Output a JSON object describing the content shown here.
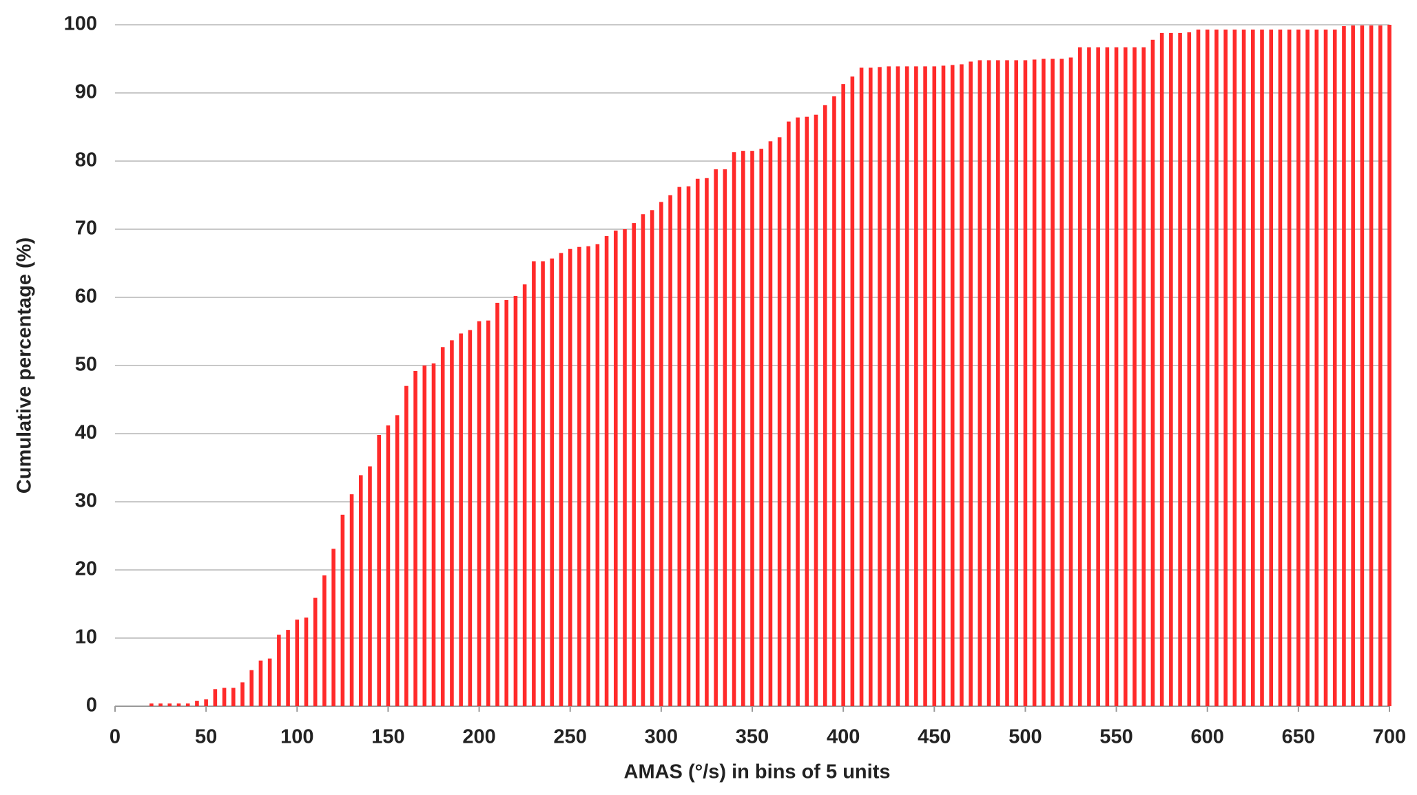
{
  "chart_data": {
    "type": "bar",
    "xlabel": "AMAS (°/s) in bins of 5 units",
    "ylabel": "Cumulative percentage (%)",
    "color": "#ff2a2a",
    "grid": true,
    "x": [
      20,
      25,
      30,
      35,
      40,
      45,
      50,
      55,
      60,
      65,
      70,
      75,
      80,
      85,
      90,
      95,
      100,
      105,
      110,
      115,
      120,
      125,
      130,
      135,
      140,
      145,
      150,
      155,
      160,
      165,
      170,
      175,
      180,
      185,
      190,
      195,
      200,
      205,
      210,
      215,
      220,
      225,
      230,
      235,
      240,
      245,
      250,
      255,
      260,
      265,
      270,
      275,
      280,
      285,
      290,
      295,
      300,
      305,
      310,
      315,
      320,
      325,
      330,
      335,
      340,
      345,
      350,
      355,
      360,
      365,
      370,
      375,
      380,
      385,
      390,
      395,
      400,
      405,
      410,
      415,
      420,
      425,
      430,
      435,
      440,
      445,
      450,
      455,
      460,
      465,
      470,
      475,
      480,
      485,
      490,
      495,
      500,
      505,
      510,
      515,
      520,
      525,
      530,
      535,
      540,
      545,
      550,
      555,
      560,
      565,
      570,
      575,
      580,
      585,
      590,
      595,
      600,
      605,
      610,
      615,
      620,
      625,
      630,
      635,
      640,
      645,
      650,
      655,
      660,
      665,
      670,
      675,
      680,
      685,
      690,
      695,
      700
    ],
    "values": [
      0.4,
      0.4,
      0.4,
      0.4,
      0.4,
      0.8,
      1.0,
      2.5,
      2.7,
      2.7,
      3.5,
      5.3,
      6.7,
      7.0,
      10.5,
      11.2,
      12.7,
      13.0,
      15.9,
      19.2,
      23.1,
      28.1,
      31.1,
      33.9,
      35.2,
      39.8,
      41.2,
      42.7,
      47.0,
      49.2,
      50.0,
      50.3,
      52.7,
      53.7,
      54.7,
      55.2,
      56.5,
      56.6,
      59.2,
      59.6,
      60.2,
      61.9,
      65.3,
      65.3,
      65.7,
      66.5,
      67.1,
      67.4,
      67.5,
      67.8,
      69.0,
      69.8,
      70.0,
      70.9,
      72.2,
      72.8,
      74.0,
      75.0,
      76.2,
      76.3,
      77.4,
      77.5,
      78.8,
      78.8,
      81.3,
      81.5,
      81.5,
      81.8,
      82.9,
      83.5,
      85.8,
      86.4,
      86.5,
      86.8,
      88.2,
      89.5,
      91.3,
      92.4,
      93.7,
      93.7,
      93.8,
      93.9,
      93.9,
      93.9,
      93.9,
      93.9,
      93.9,
      94.0,
      94.1,
      94.2,
      94.6,
      94.8,
      94.8,
      94.8,
      94.8,
      94.8,
      94.8,
      94.9,
      95.0,
      95.0,
      95.0,
      95.2,
      96.7,
      96.7,
      96.7,
      96.7,
      96.7,
      96.7,
      96.7,
      96.7,
      97.8,
      98.8,
      98.8,
      98.8,
      98.9,
      99.3,
      99.3,
      99.3,
      99.3,
      99.3,
      99.3,
      99.3,
      99.3,
      99.3,
      99.3,
      99.3,
      99.3,
      99.3,
      99.3,
      99.3,
      99.3,
      99.8,
      99.9,
      99.9,
      99.9,
      99.9,
      100
    ],
    "xlim": [
      0,
      700
    ],
    "xticks": [
      0,
      50,
      100,
      150,
      200,
      250,
      300,
      350,
      400,
      450,
      500,
      550,
      600,
      650,
      700
    ],
    "ylim": [
      0,
      100
    ],
    "yticks": [
      0,
      10,
      20,
      30,
      40,
      50,
      60,
      70,
      80,
      90,
      100
    ]
  }
}
